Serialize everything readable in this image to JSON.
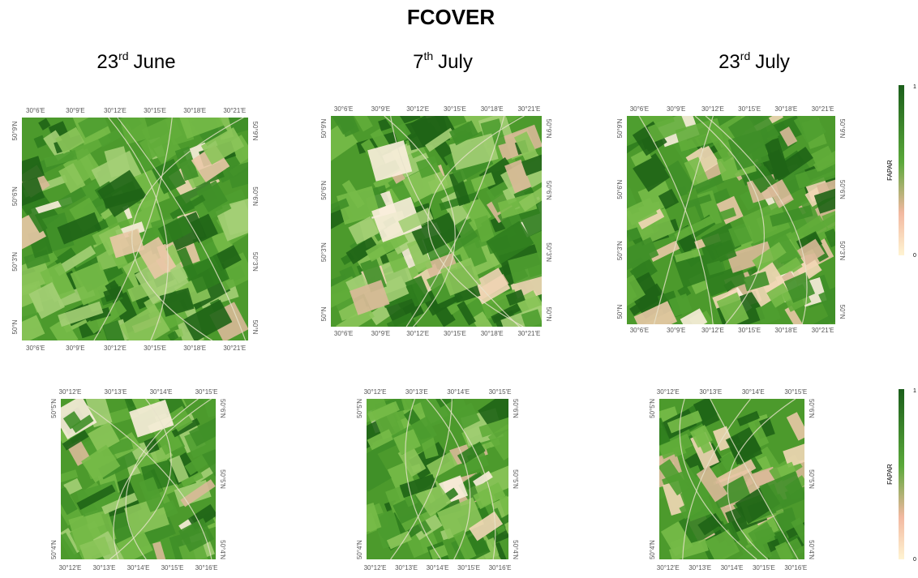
{
  "title": "FCOVER",
  "columns": [
    {
      "day": "23",
      "suffix": "rd",
      "month": "June"
    },
    {
      "day": "7",
      "suffix": "th",
      "month": "July"
    },
    {
      "day": "23",
      "suffix": "rd",
      "month": "July"
    }
  ],
  "rows": [
    {
      "maps": [
        {
          "top": [
            "30°6'E",
            "30°9'E",
            "30°12'E",
            "30°15'E",
            "30°18'E",
            "30°21'E"
          ],
          "bottom": [
            "30°6'E",
            "30°9'E",
            "30°12'E",
            "30°15'E",
            "30°18'E",
            "30°21'E"
          ],
          "left": [
            "50°9'N",
            "50°6'N",
            "50°3'N",
            "50°N"
          ],
          "right": [
            "50°9'N",
            "50°6'N",
            "50°3'N",
            "50°N"
          ]
        },
        {
          "top": [
            "30°6'E",
            "30°9'E",
            "30°12'E",
            "30°15'E",
            "30°18'E",
            "30°21'E"
          ],
          "bottom": [
            "30°6'E",
            "30°9'E",
            "30°12'E",
            "30°15'E",
            "30°18'E",
            "30°21'E"
          ],
          "left": [
            "50°9'N",
            "50°6'N",
            "50°3'N",
            "50°N"
          ],
          "right": [
            "50°9'N",
            "50°6'N",
            "50°3'N",
            "50°N"
          ]
        },
        {
          "top": [
            "30°6'E",
            "30°9'E",
            "30°12'E",
            "30°15'E",
            "30°18'E",
            "30°21'E"
          ],
          "bottom": [
            "30°6'E",
            "30°9'E",
            "30°12'E",
            "30°15'E",
            "30°18'E",
            "30°21'E"
          ],
          "left": [
            "50°9'N",
            "50°6'N",
            "50°3'N",
            "50°N"
          ],
          "right": [
            "50°9'N",
            "50°6'N",
            "50°3'N",
            "50°N"
          ]
        }
      ]
    },
    {
      "maps": [
        {
          "top": [
            "30°12'E",
            "30°13'E",
            "30°14'E",
            "30°15'E"
          ],
          "bottom": [
            "30°12'E",
            "30°13'E",
            "30°14'E",
            "30°15'E",
            "30°16'E"
          ],
          "left": [
            "50°5'N",
            "50°4'N"
          ],
          "right": [
            "50°6'N",
            "50°5'N",
            "50°4'N"
          ]
        },
        {
          "top": [
            "30°12'E",
            "30°13'E",
            "30°14'E",
            "30°15'E"
          ],
          "bottom": [
            "30°12'E",
            "30°13'E",
            "30°14'E",
            "30°15'E",
            "30°16'E"
          ],
          "left": [
            "50°5'N",
            "50°4'N"
          ],
          "right": [
            "50°6'N",
            "50°5'N",
            "50°4'N"
          ]
        },
        {
          "top": [
            "30°12'E",
            "30°13'E",
            "30°14'E",
            "30°15'E"
          ],
          "bottom": [
            "30°12'E",
            "30°13'E",
            "30°14'E",
            "30°15'E",
            "30°16'E"
          ],
          "left": [
            "50°5'N",
            "50°4'N"
          ],
          "right": [
            "50°6'N",
            "50°5'N",
            "50°4'N"
          ]
        }
      ]
    }
  ],
  "colorbars": [
    {
      "label": "FAPAR",
      "max": 1,
      "min": 0
    },
    {
      "label": "FAPAR",
      "max": 1,
      "min": 0
    }
  ]
}
